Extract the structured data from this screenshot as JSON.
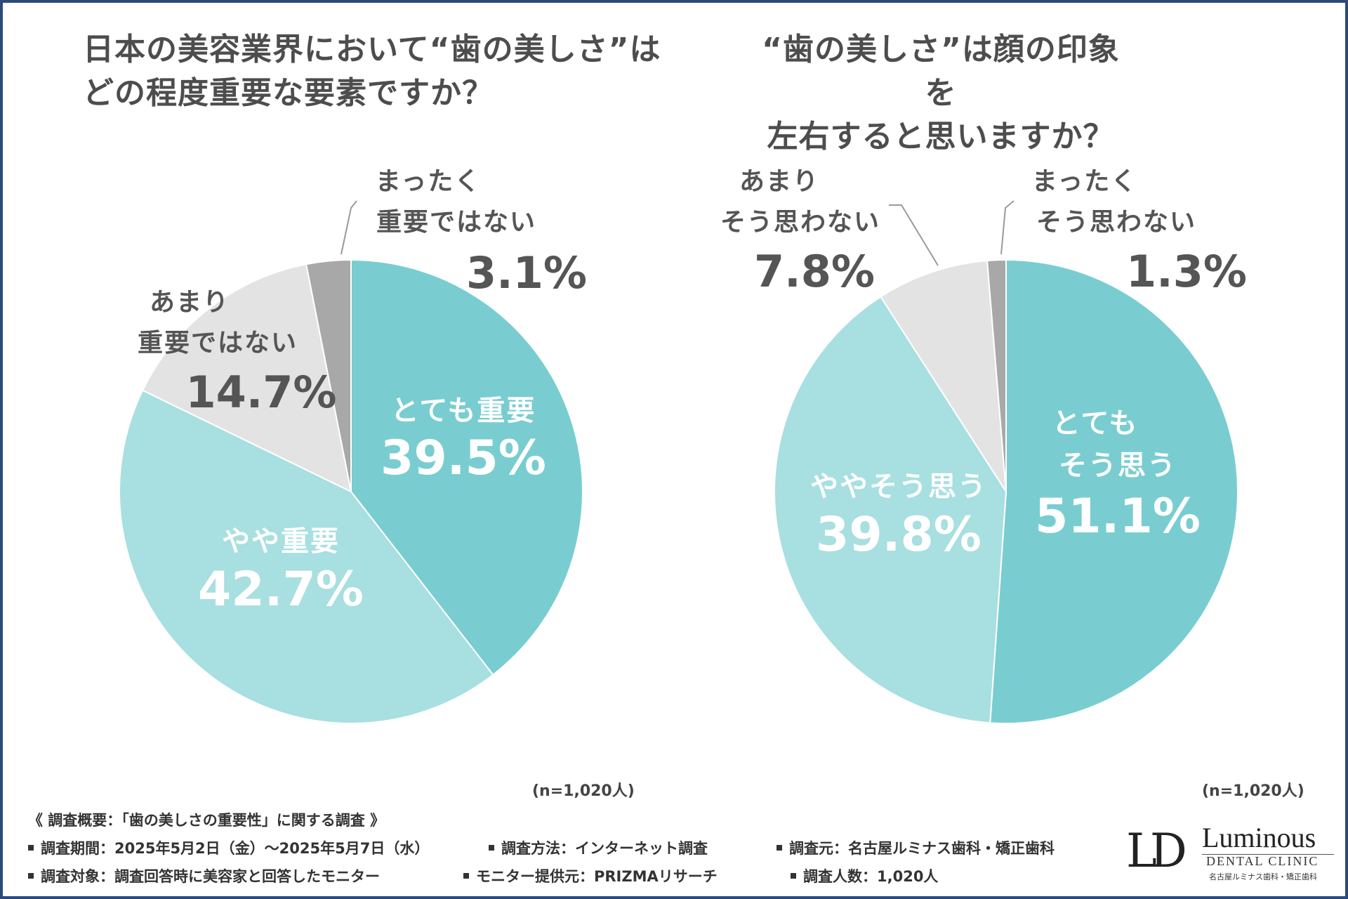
{
  "chart_data": [
    {
      "type": "pie",
      "title_lines": [
        "日本の美容業界において“歯の美しさ”は",
        "どの程度重要な要素ですか？"
      ],
      "n_label": "(n=1,020人)",
      "slices": [
        {
          "id": "l1",
          "label_lines": [
            "とても重要"
          ],
          "value": 39.5,
          "value_text": "39.5%",
          "color": "#79cdd0",
          "label_color": "#ffffff"
        },
        {
          "id": "l2",
          "label_lines": [
            "やや重要"
          ],
          "value": 42.7,
          "value_text": "42.7%",
          "color": "#a8dfe0",
          "label_color": "#ffffff"
        },
        {
          "id": "l3",
          "label_lines": [
            "あまり",
            "重要ではない"
          ],
          "value": 14.7,
          "value_text": "14.7%",
          "color": "#e3e3e3",
          "label_color": "#555555"
        },
        {
          "id": "l4",
          "label_lines": [
            "まったく",
            "重要ではない"
          ],
          "value": 3.1,
          "value_text": "3.1%",
          "color": "#a8a8a8",
          "label_color": "#555555"
        }
      ]
    },
    {
      "type": "pie",
      "title_lines": [
        "“歯の美しさ”は顔の印象を",
        "左右すると思いますか？"
      ],
      "n_label": "(n=1,020人)",
      "slices": [
        {
          "id": "r1",
          "label_lines": [
            "とても",
            "そう思う"
          ],
          "value": 51.1,
          "value_text": "51.1%",
          "color": "#79cdd0",
          "label_color": "#ffffff"
        },
        {
          "id": "r2",
          "label_lines": [
            "ややそう思う"
          ],
          "value": 39.8,
          "value_text": "39.8%",
          "color": "#a8dfe0",
          "label_color": "#ffffff"
        },
        {
          "id": "r3",
          "label_lines": [
            "あまり",
            "そう思わない"
          ],
          "value": 7.8,
          "value_text": "7.8%",
          "color": "#e3e3e3",
          "label_color": "#555555"
        },
        {
          "id": "r4",
          "label_lines": [
            "まったく",
            "そう思わない"
          ],
          "value": 1.3,
          "value_text": "1.3%",
          "color": "#a8a8a8",
          "label_color": "#555555"
        }
      ]
    }
  ],
  "survey": {
    "heading": "《 調査概要：「歯の美しさの重要性」に関する調査 》",
    "period": "調査期間：2025年5月2日（金）～2025年5月7日（水）",
    "method": "調査方法：インターネット調査",
    "source": "調査元：名古屋ルミナス歯科・矯正歯科",
    "target": "調査対象：調査回答時に美容家と回答したモニター",
    "provider": "モニター提供元：PRIZMAリサーチ",
    "count": "調査人数：1,020人"
  },
  "logo": {
    "mark": "LD",
    "name": "Luminous",
    "sub": "DENTAL CLINIC",
    "jp": "名古屋ルミナス歯科・矯正歯科"
  }
}
